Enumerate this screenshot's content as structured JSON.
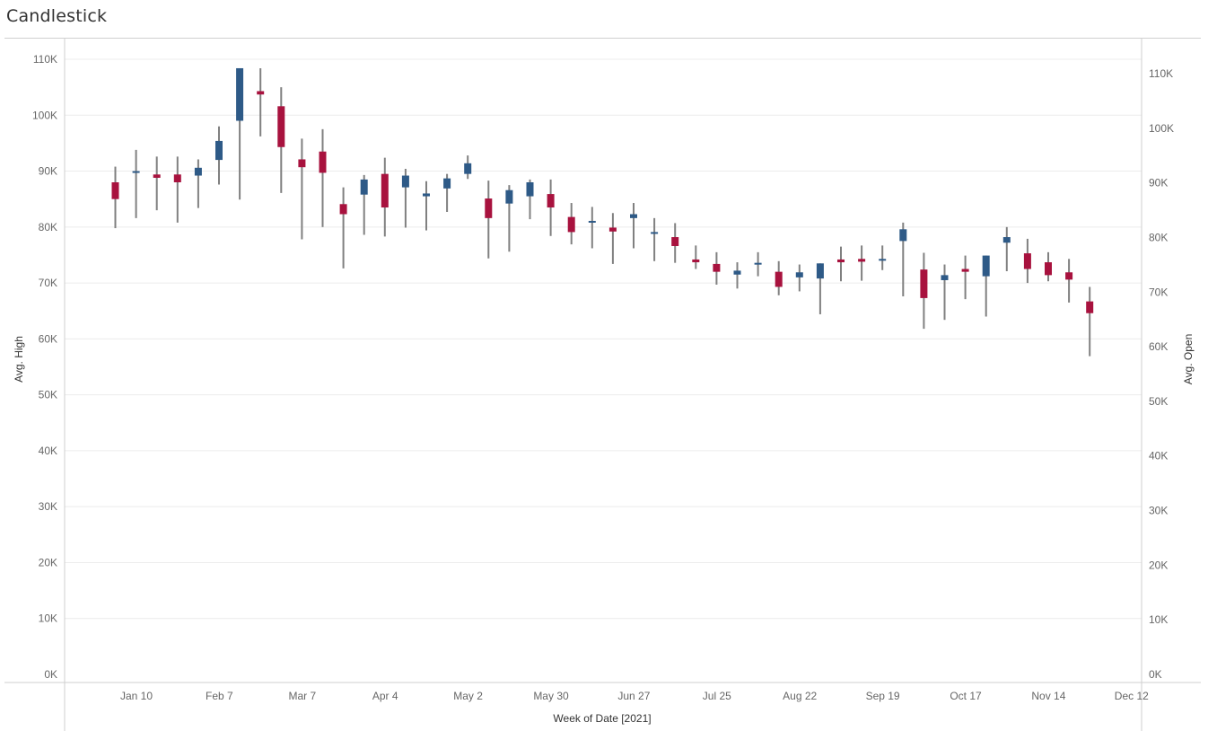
{
  "title": "Candlestick",
  "colors": {
    "up": "#2e5a87",
    "down": "#a8123e",
    "wick": "#808080",
    "grid": "#ececec",
    "axis": "#cfcfcf"
  },
  "chart_data": {
    "type": "candlestick",
    "title": "Candlestick",
    "xlabel": "Week of Date [2021]",
    "ylabel_left": "Avg. High",
    "ylabel_right": "Avg. Open",
    "x_ticks": [
      "Jan 10",
      "Feb 7",
      "Mar 7",
      "Apr 4",
      "May 2",
      "May 30",
      "Jun 27",
      "Jul 25",
      "Aug 22",
      "Sep 19",
      "Oct 17",
      "Nov 14",
      "Dec 12"
    ],
    "y_left": {
      "ylim": [
        0,
        110000
      ],
      "ticks": [
        "0K",
        "10K",
        "20K",
        "30K",
        "40K",
        "50K",
        "60K",
        "70K",
        "80K",
        "90K",
        "100K",
        "110K"
      ]
    },
    "y_right": {
      "ylim": [
        0,
        110000
      ],
      "ticks": [
        "0K",
        "10K",
        "20K",
        "30K",
        "40K",
        "50K",
        "60K",
        "70K",
        "80K",
        "90K",
        "100K",
        "110K"
      ]
    },
    "grid": true,
    "candles": [
      {
        "week": 0,
        "open": 88000,
        "close": 85000,
        "high": 90800,
        "low": 79800
      },
      {
        "week": 1,
        "open": 89800,
        "close": 90000,
        "high": 93800,
        "low": 81600
      },
      {
        "week": 2,
        "open": 89400,
        "close": 88800,
        "high": 92600,
        "low": 83000
      },
      {
        "week": 3,
        "open": 89400,
        "close": 88000,
        "high": 92600,
        "low": 80800
      },
      {
        "week": 4,
        "open": 89200,
        "close": 90600,
        "high": 92100,
        "low": 83400
      },
      {
        "week": 5,
        "open": 92000,
        "close": 95400,
        "high": 98000,
        "low": 87600
      },
      {
        "week": 6,
        "open": 99000,
        "close": 108400,
        "high": 108400,
        "low": 84900
      },
      {
        "week": 7,
        "open": 104300,
        "close": 103700,
        "high": 108400,
        "low": 96200
      },
      {
        "week": 8,
        "open": 101600,
        "close": 94300,
        "high": 105000,
        "low": 86100
      },
      {
        "week": 9,
        "open": 92100,
        "close": 90700,
        "high": 95800,
        "low": 77800
      },
      {
        "week": 10,
        "open": 93500,
        "close": 89700,
        "high": 97500,
        "low": 80000
      },
      {
        "week": 11,
        "open": 84100,
        "close": 82300,
        "high": 87100,
        "low": 72600
      },
      {
        "week": 12,
        "open": 85800,
        "close": 88500,
        "high": 89300,
        "low": 78600
      },
      {
        "week": 13,
        "open": 89500,
        "close": 83500,
        "high": 92400,
        "low": 78300
      },
      {
        "week": 14,
        "open": 87100,
        "close": 89200,
        "high": 90400,
        "low": 79900
      },
      {
        "week": 15,
        "open": 85500,
        "close": 86000,
        "high": 88200,
        "low": 79400
      },
      {
        "week": 16,
        "open": 86900,
        "close": 88700,
        "high": 89500,
        "low": 82700
      },
      {
        "week": 17,
        "open": 89500,
        "close": 91400,
        "high": 92800,
        "low": 88600
      },
      {
        "week": 18,
        "open": 85100,
        "close": 81600,
        "high": 88300,
        "low": 74400
      },
      {
        "week": 19,
        "open": 84200,
        "close": 86600,
        "high": 87500,
        "low": 75600
      },
      {
        "week": 20,
        "open": 85500,
        "close": 88000,
        "high": 88500,
        "low": 81400
      },
      {
        "week": 21,
        "open": 85900,
        "close": 83500,
        "high": 88500,
        "low": 78400
      },
      {
        "week": 22,
        "open": 81800,
        "close": 79100,
        "high": 84300,
        "low": 76900
      },
      {
        "week": 23,
        "open": 80900,
        "close": 81100,
        "high": 83600,
        "low": 76200
      },
      {
        "week": 24,
        "open": 79900,
        "close": 79200,
        "high": 82500,
        "low": 73400
      },
      {
        "week": 25,
        "open": 81600,
        "close": 82300,
        "high": 84300,
        "low": 76200
      },
      {
        "week": 26,
        "open": 78900,
        "close": 79100,
        "high": 81600,
        "low": 73900
      },
      {
        "week": 27,
        "open": 78200,
        "close": 76600,
        "high": 80700,
        "low": 73600
      },
      {
        "week": 28,
        "open": 74200,
        "close": 73700,
        "high": 76700,
        "low": 72500
      },
      {
        "week": 29,
        "open": 73400,
        "close": 72000,
        "high": 75500,
        "low": 69700
      },
      {
        "week": 30,
        "open": 71500,
        "close": 72200,
        "high": 73700,
        "low": 69000
      },
      {
        "week": 31,
        "open": 73300,
        "close": 73600,
        "high": 75500,
        "low": 71200
      },
      {
        "week": 32,
        "open": 72000,
        "close": 69300,
        "high": 73900,
        "low": 67800
      },
      {
        "week": 33,
        "open": 71000,
        "close": 71900,
        "high": 73300,
        "low": 68500
      },
      {
        "week": 34,
        "open": 70800,
        "close": 73500,
        "high": 73500,
        "low": 64400
      },
      {
        "week": 35,
        "open": 74200,
        "close": 73700,
        "high": 76500,
        "low": 70300
      },
      {
        "week": 36,
        "open": 74300,
        "close": 73800,
        "high": 76700,
        "low": 70400
      },
      {
        "week": 37,
        "open": 74100,
        "close": 74300,
        "high": 76700,
        "low": 72300
      },
      {
        "week": 38,
        "open": 77500,
        "close": 79600,
        "high": 80800,
        "low": 67600
      },
      {
        "week": 39,
        "open": 72400,
        "close": 67300,
        "high": 75400,
        "low": 61800
      },
      {
        "week": 40,
        "open": 70500,
        "close": 71400,
        "high": 73300,
        "low": 63400
      },
      {
        "week": 41,
        "open": 72500,
        "close": 72000,
        "high": 74900,
        "low": 67100
      },
      {
        "week": 42,
        "open": 71200,
        "close": 74900,
        "high": 74900,
        "low": 64000
      },
      {
        "week": 43,
        "open": 77200,
        "close": 78200,
        "high": 80000,
        "low": 72100
      },
      {
        "week": 44,
        "open": 75300,
        "close": 72500,
        "high": 77900,
        "low": 70000
      },
      {
        "week": 45,
        "open": 73700,
        "close": 71400,
        "high": 75500,
        "low": 70300
      },
      {
        "week": 46,
        "open": 71900,
        "close": 70600,
        "high": 74300,
        "low": 66500
      },
      {
        "week": 47,
        "open": 66700,
        "close": 64600,
        "high": 69300,
        "low": 56900
      }
    ]
  }
}
